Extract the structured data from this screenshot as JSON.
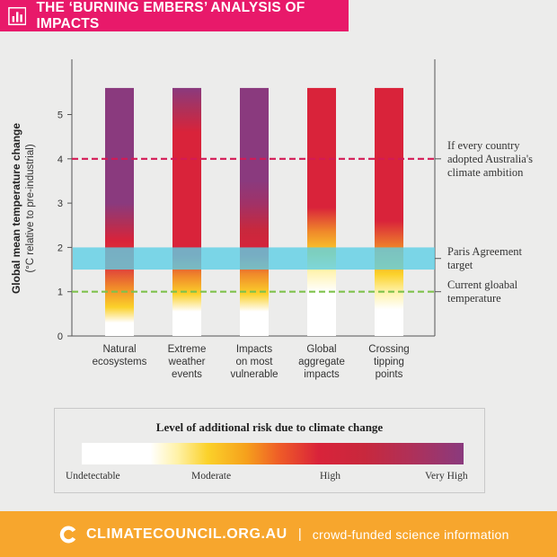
{
  "header": {
    "title": "THE ‘BURNING EMBERS’ ANALYSIS OF IMPACTS",
    "icon": "bar-chart-icon",
    "color": "#e8196a"
  },
  "chart_data": {
    "type": "bar",
    "categories": [
      [
        "Natural",
        "ecosystems"
      ],
      [
        "Extreme",
        "weather",
        "events"
      ],
      [
        "Impacts",
        "on most",
        "vulnerable"
      ],
      [
        "Global",
        "aggregate",
        "impacts"
      ],
      [
        "Crossing",
        "tipping",
        "points"
      ]
    ],
    "bar_top_value": 5.6,
    "ylim": [
      0,
      6
    ],
    "yticks": [
      0,
      1,
      2,
      3,
      4,
      5
    ],
    "ylabel": "Global mean temperature change",
    "ylabel_sub": "(°C relative to pre-industrial)",
    "risk_colors": {
      "undetectable": "#ffffff",
      "moderate": "#fbd12a",
      "high": "#d9233a",
      "very_high": "#8a3a7e"
    },
    "embers": [
      [
        {
          "t": 0,
          "c": "#ffffff"
        },
        {
          "t": 0.3,
          "c": "#ffffff"
        },
        {
          "t": 0.65,
          "c": "#fbd12a"
        },
        {
          "t": 1.1,
          "c": "#f08a2a"
        },
        {
          "t": 1.5,
          "c": "#e0453a"
        },
        {
          "t": 2.15,
          "c": "#d9233a"
        },
        {
          "t": 2.55,
          "c": "#b03058"
        },
        {
          "t": 3.0,
          "c": "#8a3a7e"
        },
        {
          "t": 5.6,
          "c": "#8a3a7e"
        }
      ],
      [
        {
          "t": 0,
          "c": "#ffffff"
        },
        {
          "t": 0.55,
          "c": "#ffffff"
        },
        {
          "t": 0.95,
          "c": "#fbd12a"
        },
        {
          "t": 1.35,
          "c": "#f08a2a"
        },
        {
          "t": 1.85,
          "c": "#d9233a"
        },
        {
          "t": 4.6,
          "c": "#d9233a"
        },
        {
          "t": 5.1,
          "c": "#b03058"
        },
        {
          "t": 5.6,
          "c": "#8a3a7e"
        }
      ],
      [
        {
          "t": 0,
          "c": "#ffffff"
        },
        {
          "t": 0.55,
          "c": "#ffffff"
        },
        {
          "t": 0.95,
          "c": "#fbd12a"
        },
        {
          "t": 1.4,
          "c": "#f08a2a"
        },
        {
          "t": 1.85,
          "c": "#d9233a"
        },
        {
          "t": 2.4,
          "c": "#c8283d"
        },
        {
          "t": 3.0,
          "c": "#a03268"
        },
        {
          "t": 3.5,
          "c": "#8a3a7e"
        },
        {
          "t": 5.6,
          "c": "#8a3a7e"
        }
      ],
      [
        {
          "t": 0,
          "c": "#ffffff"
        },
        {
          "t": 1.0,
          "c": "#ffffff"
        },
        {
          "t": 1.5,
          "c": "#fff2a8"
        },
        {
          "t": 1.85,
          "c": "#fbd12a"
        },
        {
          "t": 2.35,
          "c": "#f08a2a"
        },
        {
          "t": 2.9,
          "c": "#d9233a"
        },
        {
          "t": 5.6,
          "c": "#d9233a"
        }
      ],
      [
        {
          "t": 0,
          "c": "#ffffff"
        },
        {
          "t": 0.6,
          "c": "#ffffff"
        },
        {
          "t": 1.0,
          "c": "#fff2a8"
        },
        {
          "t": 1.4,
          "c": "#fbd12a"
        },
        {
          "t": 1.95,
          "c": "#f08a2a"
        },
        {
          "t": 2.6,
          "c": "#d9233a"
        },
        {
          "t": 5.6,
          "c": "#d9233a"
        }
      ]
    ],
    "lines": [
      {
        "value": 4.0,
        "style": "dashed",
        "color": "#d41a55",
        "label": [
          "If every country",
          "adopted Australia's",
          "climate ambition"
        ]
      },
      {
        "value": 1.0,
        "style": "dashed",
        "color": "#7ec24c",
        "label": [
          "Current gloabal",
          "temperature"
        ]
      }
    ],
    "band": {
      "from": 1.5,
      "to": 2.0,
      "color": "#5ecfe6",
      "opacity": 0.8,
      "label": [
        "Paris Agreement",
        "target"
      ]
    }
  },
  "legend": {
    "title": "Level of additional risk due to climate change",
    "labels": {
      "undetectable": "Undetectable",
      "moderate": "Moderate",
      "high": "High",
      "very_high": "Very High"
    }
  },
  "footer": {
    "brand": "CLIMATECOUNCIL.ORG.AU",
    "separator": "|",
    "tagline": "crowd-funded science information",
    "logo_icon": "climate-council-logo-icon",
    "color": "#f7a62d"
  }
}
